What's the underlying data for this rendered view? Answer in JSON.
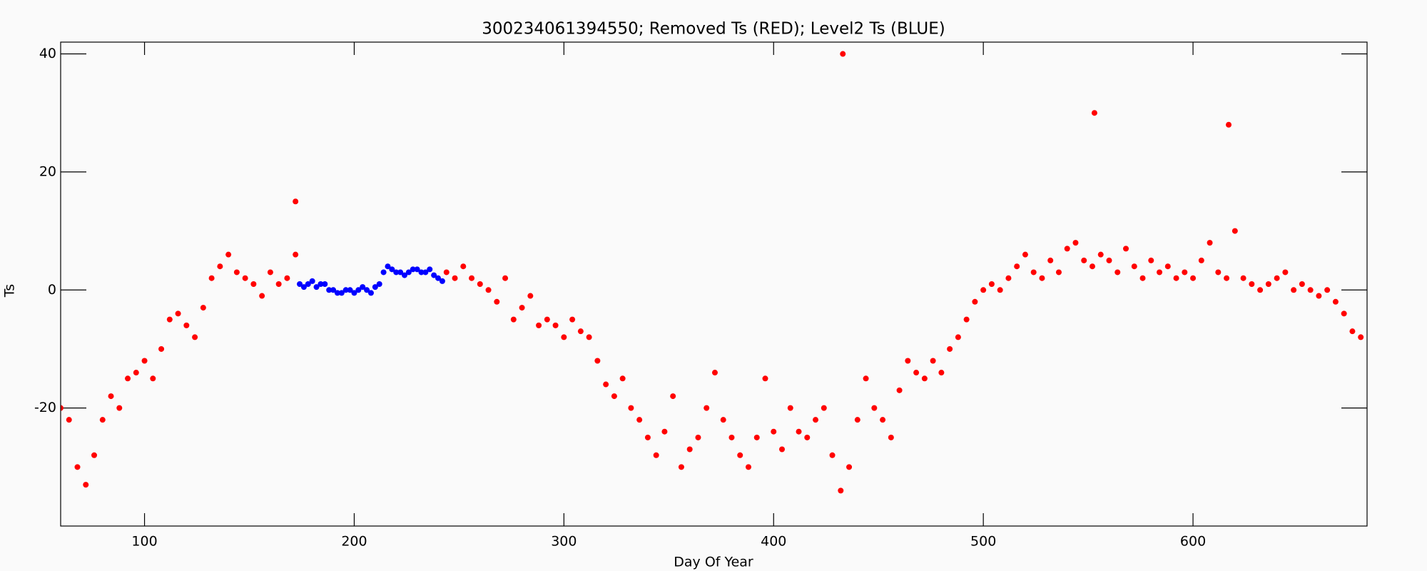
{
  "chart_data": {
    "type": "scatter",
    "title": "300234061394550; Removed Ts (RED); Level2 Ts (BLUE)",
    "x_label": "Day Of Year",
    "y_label": "Ts",
    "xlim": [
      60,
      683
    ],
    "ylim": [
      -40,
      42
    ],
    "xticks": [
      100,
      200,
      300,
      400,
      500,
      600
    ],
    "yticks": [
      -20,
      0,
      20,
      40
    ],
    "series": [
      {
        "color": "#ff0000",
        "x": [
          60,
          64,
          68,
          72,
          76,
          80,
          84,
          88,
          92,
          96,
          100,
          104,
          108,
          112,
          116,
          120,
          124,
          128,
          132,
          136,
          140,
          144,
          148,
          152,
          156,
          160,
          164,
          168,
          172,
          172,
          244,
          248,
          252,
          256,
          260,
          264,
          268,
          272,
          276,
          280,
          284,
          288,
          292,
          296,
          300,
          304,
          308,
          312,
          316,
          320,
          324,
          328,
          332,
          336,
          340,
          344,
          348,
          352,
          356,
          360,
          364,
          368,
          372,
          376,
          380,
          384,
          388,
          392,
          396,
          400,
          404,
          408,
          412,
          416,
          420,
          424,
          428,
          432,
          433,
          436,
          440,
          444,
          448,
          452,
          456,
          460,
          464,
          468,
          472,
          476,
          480,
          484,
          488,
          492,
          496,
          500,
          504,
          508,
          512,
          516,
          520,
          524,
          528,
          532,
          536,
          540,
          544,
          548,
          552,
          553,
          556,
          560,
          564,
          568,
          572,
          576,
          580,
          584,
          588,
          592,
          596,
          600,
          604,
          608,
          612,
          616,
          617,
          620,
          624,
          628,
          632,
          636,
          640,
          644,
          648,
          652,
          656,
          660,
          664,
          668,
          672,
          676,
          680
        ],
        "values": [
          -20,
          -22,
          -30,
          -33,
          -28,
          -22,
          -18,
          -20,
          -15,
          -14,
          -12,
          -15,
          -10,
          -5,
          -4,
          -6,
          -8,
          -3,
          2,
          4,
          6,
          3,
          2,
          1,
          -1,
          3,
          1,
          2,
          6,
          15,
          3,
          2,
          4,
          2,
          1,
          0,
          -2,
          2,
          -5,
          -3,
          -1,
          -6,
          -5,
          -6,
          -8,
          -5,
          -7,
          -8,
          -12,
          -16,
          -18,
          -15,
          -20,
          -22,
          -25,
          -28,
          -24,
          -18,
          -30,
          -27,
          -25,
          -20,
          -14,
          -22,
          -25,
          -28,
          -30,
          -25,
          -15,
          -24,
          -27,
          -20,
          -24,
          -25,
          -22,
          -20,
          -28,
          -34,
          40,
          -30,
          -22,
          -15,
          -20,
          -22,
          -25,
          -17,
          -12,
          -14,
          -15,
          -12,
          -14,
          -10,
          -8,
          -5,
          -2,
          0,
          1,
          0,
          2,
          4,
          6,
          3,
          2,
          5,
          3,
          7,
          8,
          5,
          4,
          30,
          6,
          5,
          3,
          7,
          4,
          2,
          5,
          3,
          4,
          2,
          3,
          2,
          5,
          8,
          3,
          2,
          28,
          10,
          2,
          1,
          0,
          1,
          2,
          3,
          0,
          1,
          0,
          -1,
          0,
          -2,
          -4,
          -7,
          -8
        ]
      },
      {
        "color": "#0000ff",
        "x": [
          174,
          176,
          178,
          180,
          182,
          184,
          186,
          188,
          190,
          192,
          194,
          196,
          198,
          200,
          202,
          204,
          206,
          208,
          210,
          212,
          214,
          216,
          218,
          220,
          222,
          224,
          226,
          228,
          230,
          232,
          234,
          236,
          238,
          240,
          242
        ],
        "values": [
          1,
          0.5,
          1,
          1.5,
          0.5,
          1,
          1,
          0,
          0,
          -0.5,
          -0.5,
          0,
          0,
          -0.5,
          0,
          0.5,
          0,
          -0.5,
          0.5,
          1,
          3,
          4,
          3.5,
          3,
          3,
          2.5,
          3,
          3.5,
          3.5,
          3,
          3,
          3.5,
          2.5,
          2,
          1.5
        ]
      }
    ]
  }
}
